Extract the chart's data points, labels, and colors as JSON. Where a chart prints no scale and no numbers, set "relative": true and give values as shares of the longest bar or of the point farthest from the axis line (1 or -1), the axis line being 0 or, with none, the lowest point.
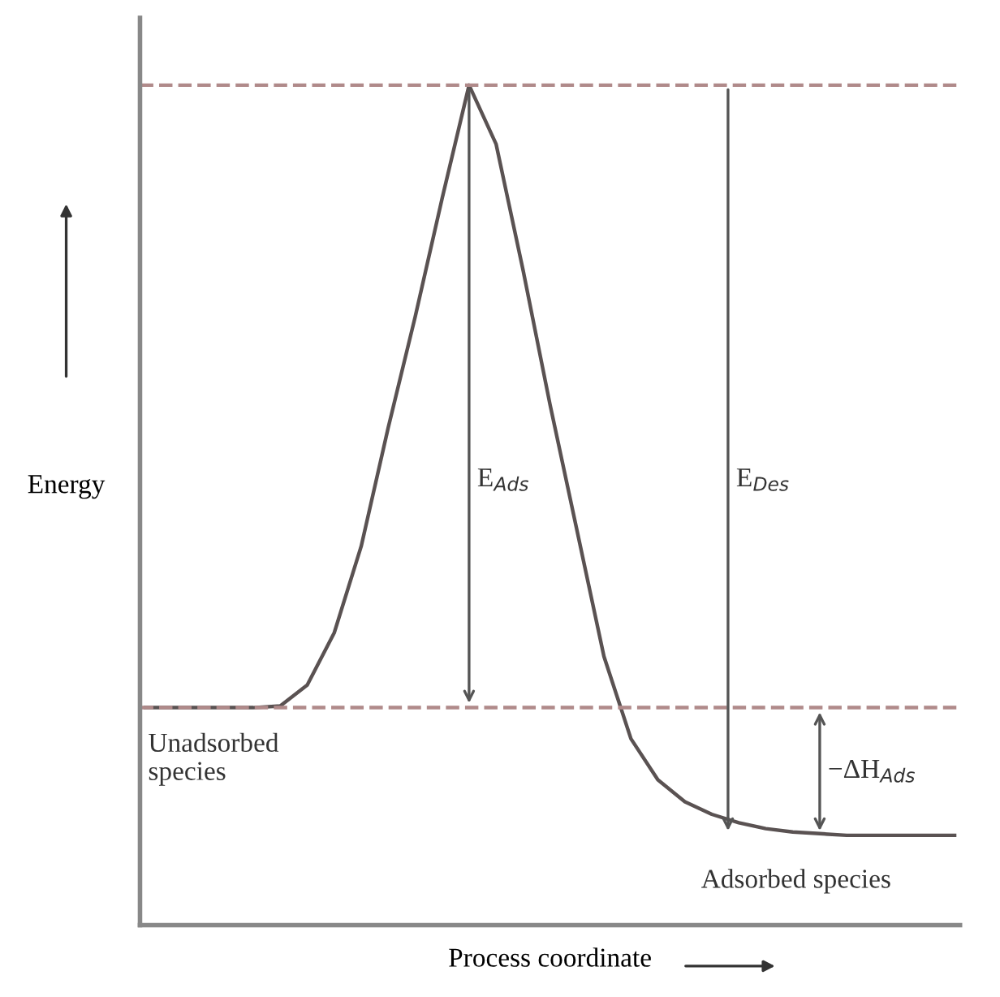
{
  "chart_data": {
    "type": "line",
    "relative": true,
    "xlabel": "Process coordinate",
    "ylabel": "Energy",
    "categories": [
      null,
      null,
      null,
      null,
      null,
      null,
      null,
      null,
      null,
      null,
      null,
      null,
      null,
      null,
      null,
      null,
      null,
      null,
      null,
      null,
      null,
      null,
      null,
      null,
      null,
      null,
      null,
      null,
      null,
      null,
      null
    ],
    "series": [
      {
        "color": "#5a5252",
        "values": [
          0.259,
          0.259,
          0.259,
          0.259,
          0.259,
          0.261,
          0.286,
          0.348,
          0.451,
          0.592,
          0.724,
          0.865,
          1.0,
          0.93,
          0.78,
          0.62,
          0.47,
          0.32,
          0.222,
          0.173,
          0.147,
          0.132,
          0.122,
          0.115,
          0.111,
          0.109,
          0.107,
          0.107,
          0.107,
          0.107,
          0.107
        ]
      }
    ],
    "ref_lines": [
      {
        "axis": "y",
        "value": 1.0,
        "color": "#b08a8a",
        "line_style": "dashed"
      },
      {
        "axis": "y",
        "value": 0.259,
        "color": "#b08a8a",
        "line_style": "dashed"
      }
    ],
    "annotations": [
      "E$_{Ads}$",
      "E$_{Des}$",
      "−ΔH$_{Ads}$",
      "Unadsorbed\nspecies",
      "Adsorbed species"
    ],
    "marker": "none",
    "line_style": "solid"
  }
}
